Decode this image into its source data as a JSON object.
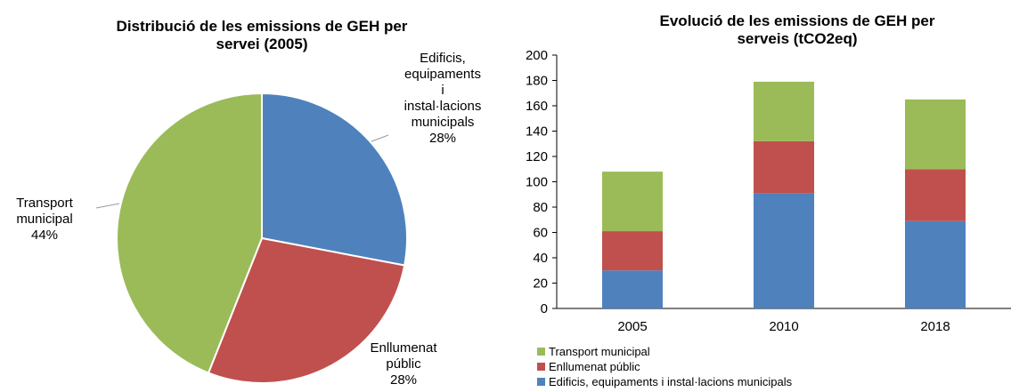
{
  "chart_data": [
    {
      "type": "pie",
      "title": "Distribució de les emissions de GEH per servei (2005)",
      "categories": [
        "Edificis, equipaments i instal·lacions municipals",
        "Enllumenat públic",
        "Transport municipal"
      ],
      "values": [
        28,
        28,
        44
      ],
      "value_labels": [
        "28%",
        "28%",
        "44%"
      ],
      "colors": [
        "#4f81bd",
        "#c0504d",
        "#9bbb59"
      ]
    },
    {
      "type": "bar",
      "stacked": true,
      "title": "Evolució de les emissions de GEH per serveis (tCO2eq)",
      "categories": [
        "2005",
        "2010",
        "2018"
      ],
      "series": [
        {
          "name": "Edificis, equipaments i instal·lacions municipals",
          "color": "#4f81bd",
          "values": [
            30,
            91,
            69
          ]
        },
        {
          "name": "Enllumenat públic",
          "color": "#c0504d",
          "values": [
            31,
            41,
            41
          ]
        },
        {
          "name": "Transport municipal",
          "color": "#9bbb59",
          "values": [
            47,
            47,
            55
          ]
        }
      ],
      "ylim": [
        0,
        200
      ],
      "yticks": [
        0,
        20,
        40,
        60,
        80,
        100,
        120,
        140,
        160,
        180,
        200
      ]
    }
  ]
}
